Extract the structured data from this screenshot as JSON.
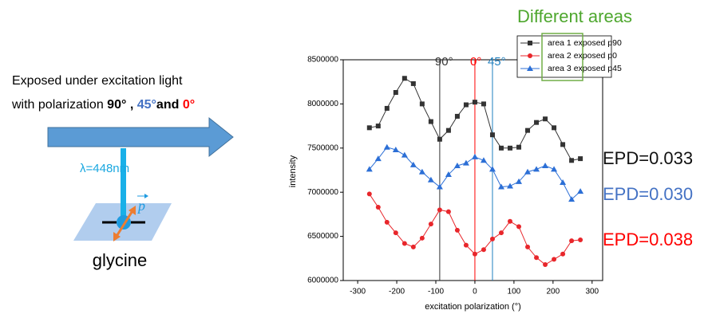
{
  "chart_data": {
    "type": "line",
    "x_label": "excitation polarization (°)",
    "y_label": "intensity",
    "x": [
      -270,
      -247.5,
      -225,
      -202.5,
      -180,
      -157.5,
      -135,
      -112.5,
      -90,
      -67.5,
      -45,
      -22.5,
      0,
      22.5,
      45,
      67.5,
      90,
      112.5,
      135,
      157.5,
      180,
      202.5,
      225,
      247.5,
      270
    ],
    "series": [
      {
        "name": "area 1 exposed p90",
        "color": "#333333",
        "marker": "square",
        "values": [
          7730000,
          7750000,
          7950000,
          8130000,
          8290000,
          8230000,
          8000000,
          7800000,
          7600000,
          7700000,
          7860000,
          7990000,
          8020000,
          8000000,
          7650000,
          7500000,
          7500000,
          7510000,
          7700000,
          7790000,
          7830000,
          7730000,
          7540000,
          7360000,
          7380000
        ]
      },
      {
        "name": "area 2 exposed p0",
        "color": "#e8262b",
        "marker": "circle",
        "values": [
          6980000,
          6830000,
          6660000,
          6540000,
          6420000,
          6380000,
          6480000,
          6640000,
          6800000,
          6780000,
          6570000,
          6400000,
          6300000,
          6350000,
          6470000,
          6540000,
          6670000,
          6610000,
          6380000,
          6260000,
          6180000,
          6240000,
          6300000,
          6450000,
          6460000
        ]
      },
      {
        "name": "area 3 exposed p45",
        "color": "#2c6fd6",
        "marker": "triangle",
        "values": [
          7260000,
          7380000,
          7510000,
          7480000,
          7420000,
          7310000,
          7230000,
          7140000,
          7060000,
          7200000,
          7300000,
          7330000,
          7400000,
          7360000,
          7260000,
          7060000,
          7070000,
          7120000,
          7230000,
          7260000,
          7300000,
          7260000,
          7110000,
          6920000,
          7010000
        ]
      }
    ],
    "xlim": [
      -337,
      327
    ],
    "xticks": [
      -300,
      -200,
      -100,
      0,
      100,
      200,
      300
    ],
    "ylim": [
      6000000,
      8500000
    ],
    "yticks": [
      6000000,
      6500000,
      7000000,
      7500000,
      8000000,
      8500000
    ],
    "legend": "upper right",
    "legend_title": "Different areas",
    "annotations": [
      {
        "x": -90,
        "label": "90°",
        "color": "#333333"
      },
      {
        "x": 0,
        "label": "0°",
        "color": "#ff0000"
      },
      {
        "x": 45,
        "label": "45°",
        "color": "#1f7fbf"
      }
    ],
    "epd_labels": [
      {
        "text": "EPD=0.033",
        "color": "#111111"
      },
      {
        "text": "EPD=0.030",
        "color": "#4472c4"
      },
      {
        "text": "EPD=0.038",
        "color": "#ff0000"
      }
    ]
  },
  "diagram": {
    "line1": "Exposed under excitation light",
    "line2": [
      {
        "text": "with polarization ",
        "color": "#000000",
        "bold": false
      },
      {
        "text": "90°",
        "color": "#000000",
        "bold": true
      },
      {
        "text": " , ",
        "color": "#000000",
        "bold": true
      },
      {
        "text": "45°",
        "color": "#4472c4",
        "bold": true
      },
      {
        "text": "and ",
        "color": "#000000",
        "bold": true
      },
      {
        "text": "0°",
        "color": "#ff0000",
        "bold": true
      }
    ],
    "wavelength": "λ=448nm",
    "vector": "p",
    "sample": "glycine"
  }
}
